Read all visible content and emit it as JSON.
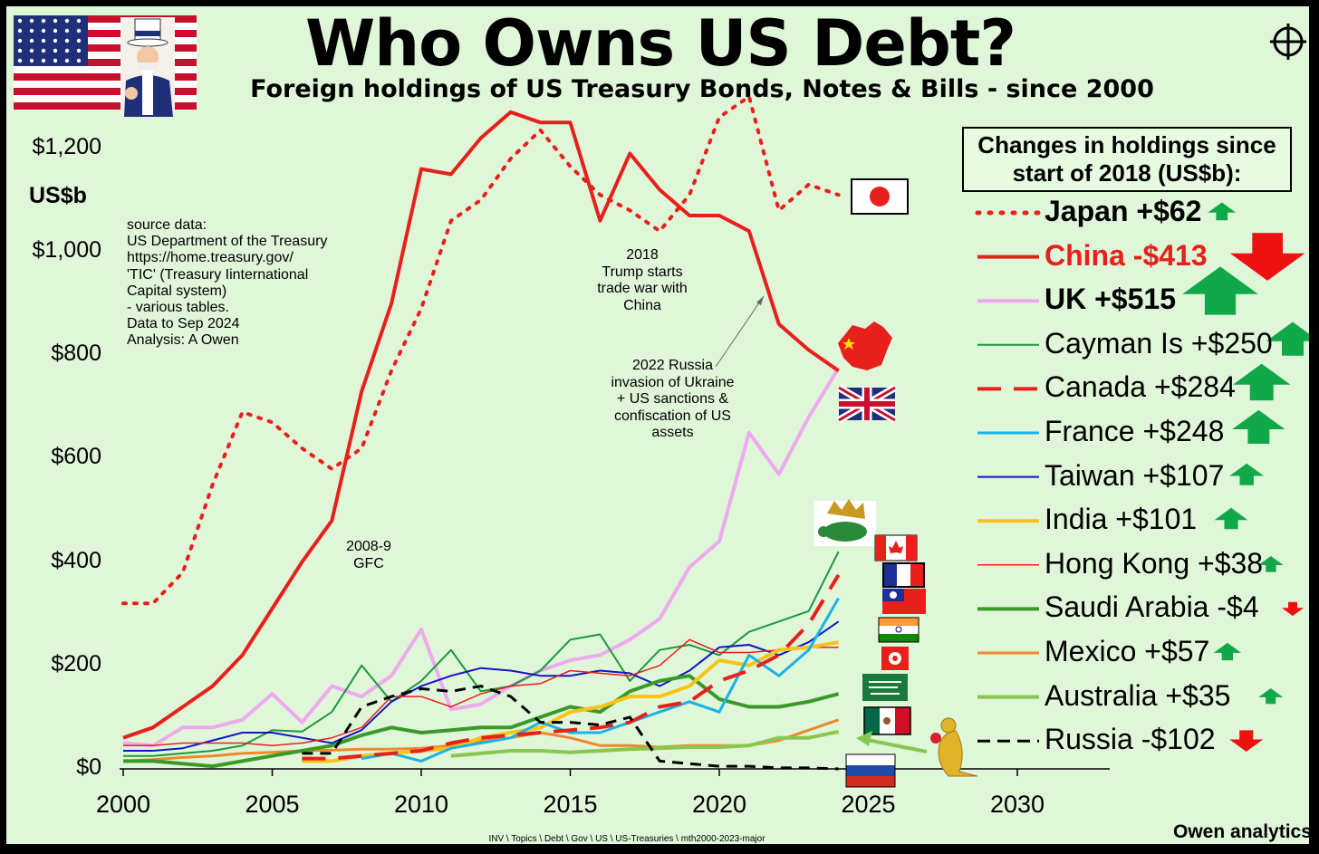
{
  "title": "Who Owns US Debt?",
  "subtitle": "Foreign holdings of US Treasury Bonds, Notes & Bills - since 2000",
  "y_unit": "US$b",
  "source_note": "source data:\nUS Department of the Treasury\nhttps://home.treasury.gov/\n'TIC' (Treasury Iinternational\nCapital system)\n- various tables.\nData to Sep 2024\nAnalysis: A Owen",
  "annotations": {
    "gfc": "2008-9\nGFC",
    "trade_war": "2018\nTrump starts\ntrade war with\nChina",
    "russia": "2022 Russia\ninvasion of Ukraine\n+ US sanctions &\nconfiscation of US\nassets"
  },
  "legend_title": "Changes in holdings since start of 2018 (US$b):",
  "footer": "INV \\ Topics \\ Debt \\ Gov \\ US \\ US-Treasuries \\ mth2000-2023-major",
  "brand": "Owen analytics",
  "chart_data": {
    "type": "line",
    "title": "Who Owns US Debt?",
    "xlabel": "",
    "ylabel": "US$b",
    "xlim": [
      2000,
      2033
    ],
    "ylim": [
      0,
      1300
    ],
    "x_ticks": [
      2000,
      2005,
      2010,
      2015,
      2020,
      2025,
      2030
    ],
    "x_tick_labels": [
      "2000",
      "2005",
      "2010",
      "2015",
      "2020",
      "2025",
      "2030"
    ],
    "y_ticks": [
      0,
      200,
      400,
      600,
      800,
      1000,
      1200
    ],
    "y_tick_labels": [
      "$0",
      "$200",
      "$400",
      "$600",
      "$800",
      "$1,000",
      "$1,200"
    ],
    "grid": false,
    "legend_position": "right",
    "series": [
      {
        "name": "Japan +$62",
        "color": "#e8201c",
        "style": "dotted",
        "width": 4,
        "bold": true,
        "x": [
          2000,
          2001,
          2002,
          2003,
          2004,
          2005,
          2006,
          2007,
          2008,
          2009,
          2010,
          2011,
          2012,
          2013,
          2014,
          2015,
          2016,
          2017,
          2018,
          2019,
          2020,
          2021,
          2022,
          2023,
          2024
        ],
        "y": [
          320,
          320,
          380,
          550,
          690,
          670,
          620,
          580,
          620,
          770,
          890,
          1060,
          1100,
          1180,
          1235,
          1165,
          1110,
          1080,
          1040,
          1110,
          1260,
          1300,
          1080,
          1130,
          1110
        ]
      },
      {
        "name": "China -$413",
        "color": "#e8201c",
        "style": "solid",
        "width": 4,
        "bold": true,
        "label_color": "#e8201c",
        "x": [
          2000,
          2001,
          2002,
          2003,
          2004,
          2005,
          2006,
          2007,
          2008,
          2009,
          2010,
          2011,
          2012,
          2013,
          2014,
          2015,
          2016,
          2017,
          2018,
          2019,
          2020,
          2021,
          2022,
          2023,
          2024
        ],
        "y": [
          60,
          80,
          120,
          160,
          220,
          310,
          400,
          480,
          730,
          900,
          1160,
          1150,
          1220,
          1270,
          1250,
          1250,
          1060,
          1190,
          1120,
          1070,
          1070,
          1040,
          860,
          810,
          770
        ]
      },
      {
        "name": "UK +$515",
        "color": "#eeaaee",
        "style": "solid",
        "width": 4,
        "bold": true,
        "x": [
          2000,
          2001,
          2002,
          2003,
          2004,
          2005,
          2006,
          2007,
          2008,
          2009,
          2010,
          2011,
          2012,
          2013,
          2014,
          2015,
          2016,
          2017,
          2018,
          2019,
          2020,
          2021,
          2022,
          2023,
          2024
        ],
        "y": [
          50,
          45,
          80,
          80,
          95,
          145,
          90,
          160,
          140,
          180,
          270,
          115,
          125,
          160,
          190,
          210,
          220,
          250,
          290,
          390,
          440,
          650,
          570,
          680,
          775
        ]
      },
      {
        "name": "Cayman Is +$250",
        "color": "#1a9a3a",
        "style": "solid",
        "width": 2,
        "x": [
          2000,
          2001,
          2002,
          2003,
          2004,
          2005,
          2006,
          2007,
          2008,
          2009,
          2010,
          2011,
          2012,
          2013,
          2014,
          2015,
          2016,
          2017,
          2018,
          2019,
          2020,
          2021,
          2022,
          2023,
          2024
        ],
        "y": [
          25,
          25,
          30,
          35,
          45,
          75,
          72,
          110,
          200,
          130,
          170,
          230,
          150,
          160,
          190,
          250,
          260,
          170,
          230,
          240,
          220,
          265,
          285,
          305,
          420
        ]
      },
      {
        "name": "Canada +$284",
        "color": "#e8201c",
        "style": "dashed",
        "width": 4,
        "x": [
          2006,
          2007,
          2008,
          2009,
          2010,
          2011,
          2012,
          2013,
          2014,
          2015,
          2016,
          2017,
          2018,
          2019,
          2020,
          2021,
          2022,
          2023,
          2024
        ],
        "y": [
          20,
          20,
          25,
          30,
          35,
          50,
          60,
          65,
          70,
          75,
          80,
          90,
          120,
          130,
          170,
          190,
          220,
          280,
          375
        ]
      },
      {
        "name": "France +$248",
        "color": "#1ab2e8",
        "style": "solid",
        "width": 3,
        "x": [
          2008,
          2009,
          2010,
          2011,
          2012,
          2013,
          2014,
          2015,
          2016,
          2017,
          2018,
          2019,
          2020,
          2021,
          2022,
          2023,
          2024
        ],
        "y": [
          20,
          30,
          15,
          40,
          50,
          60,
          90,
          70,
          70,
          90,
          110,
          130,
          110,
          220,
          180,
          230,
          330
        ]
      },
      {
        "name": "Taiwan +$107",
        "color": "#1414c8",
        "style": "solid",
        "width": 2,
        "x": [
          2000,
          2001,
          2002,
          2003,
          2004,
          2005,
          2006,
          2007,
          2008,
          2009,
          2010,
          2011,
          2012,
          2013,
          2014,
          2015,
          2016,
          2017,
          2018,
          2019,
          2020,
          2021,
          2022,
          2023,
          2024
        ],
        "y": [
          35,
          35,
          40,
          55,
          70,
          70,
          60,
          50,
          75,
          130,
          160,
          180,
          195,
          190,
          180,
          180,
          190,
          185,
          160,
          190,
          235,
          240,
          220,
          245,
          285
        ]
      },
      {
        "name": "India +$101",
        "color": "#f8c418",
        "style": "solid",
        "width": 4,
        "x": [
          2006,
          2007,
          2008,
          2009,
          2010,
          2011,
          2012,
          2013,
          2014,
          2015,
          2016,
          2017,
          2018,
          2019,
          2020,
          2021,
          2022,
          2023,
          2024
        ],
        "y": [
          15,
          15,
          25,
          30,
          35,
          40,
          60,
          70,
          80,
          110,
          120,
          140,
          140,
          160,
          210,
          200,
          230,
          235,
          245
        ]
      },
      {
        "name": "Hong Kong +$38",
        "color": "#e8201c",
        "style": "solid",
        "width": 1.5,
        "x": [
          2000,
          2001,
          2002,
          2003,
          2004,
          2005,
          2006,
          2007,
          2008,
          2009,
          2010,
          2011,
          2012,
          2013,
          2014,
          2015,
          2016,
          2017,
          2018,
          2019,
          2020,
          2021,
          2022,
          2023,
          2024
        ],
        "y": [
          45,
          45,
          50,
          50,
          50,
          45,
          50,
          60,
          80,
          140,
          140,
          120,
          145,
          160,
          165,
          190,
          185,
          180,
          200,
          250,
          225,
          225,
          230,
          235,
          235
        ]
      },
      {
        "name": "Saudi Arabia -$4",
        "color": "#3a9a28",
        "style": "solid",
        "width": 4,
        "x": [
          2000,
          2001,
          2002,
          2003,
          2004,
          2005,
          2006,
          2007,
          2008,
          2009,
          2010,
          2011,
          2012,
          2013,
          2014,
          2015,
          2016,
          2017,
          2018,
          2019,
          2020,
          2021,
          2022,
          2023,
          2024
        ],
        "y": [
          15,
          15,
          10,
          5,
          15,
          25,
          35,
          45,
          65,
          80,
          70,
          75,
          80,
          80,
          100,
          120,
          110,
          150,
          170,
          180,
          135,
          120,
          120,
          130,
          145
        ]
      },
      {
        "name": "Mexico +$57",
        "color": "#ee8a2a",
        "style": "solid",
        "width": 3,
        "x": [
          2000,
          2001,
          2002,
          2003,
          2004,
          2005,
          2006,
          2007,
          2008,
          2009,
          2010,
          2011,
          2012,
          2013,
          2014,
          2015,
          2016,
          2017,
          2018,
          2019,
          2020,
          2021,
          2022,
          2023,
          2024
        ],
        "y": [
          15,
          18,
          22,
          25,
          30,
          32,
          35,
          36,
          38,
          38,
          40,
          45,
          55,
          60,
          70,
          60,
          45,
          45,
          42,
          45,
          45,
          45,
          55,
          75,
          95
        ]
      },
      {
        "name": "Australia +$35",
        "color": "#88c850",
        "style": "solid",
        "width": 4,
        "x": [
          2011,
          2012,
          2013,
          2014,
          2015,
          2016,
          2017,
          2018,
          2019,
          2020,
          2021,
          2022,
          2023,
          2024
        ],
        "y": [
          25,
          30,
          35,
          35,
          32,
          35,
          38,
          40,
          42,
          42,
          45,
          60,
          60,
          72
        ]
      },
      {
        "name": "Russia -$102",
        "color": "#000000",
        "style": "dashed",
        "width": 3,
        "x": [
          2006,
          2007,
          2008,
          2009,
          2010,
          2011,
          2012,
          2013,
          2014,
          2015,
          2016,
          2017,
          2018,
          2019,
          2020,
          2021,
          2022,
          2023,
          2024
        ],
        "y": [
          30,
          30,
          120,
          140,
          155,
          150,
          160,
          140,
          90,
          90,
          85,
          100,
          15,
          10,
          5,
          5,
          2,
          2,
          0
        ]
      }
    ]
  },
  "legend_changes": {
    "Japan +$62": 62,
    "China -$413": -413,
    "UK +$515": 515,
    "Cayman Is +$250": 250,
    "Canada +$284": 284,
    "France +$248": 248,
    "Taiwan +$107": 107,
    "India +$101": 101,
    "Hong Kong +$38": 38,
    "Saudi Arabia -$4": -4,
    "Mexico +$57": 57,
    "Australia +$35": 35,
    "Russia -$102": -102
  },
  "arrow_colors": {
    "up": "#11a84a",
    "down": "#ee1111"
  },
  "icons": [
    "us-flag-icon",
    "uncle-sam-icon",
    "crosshair-icon",
    "japan-flag-icon",
    "china-map-icon",
    "uk-flag-icon",
    "cayman-turtle-icon",
    "canada-flag-icon",
    "france-flag-icon",
    "taiwan-flag-icon",
    "india-flag-icon",
    "hong-kong-flag-icon",
    "saudi-flag-icon",
    "mexico-flag-icon",
    "russia-flag-icon",
    "kangaroo-icon"
  ]
}
